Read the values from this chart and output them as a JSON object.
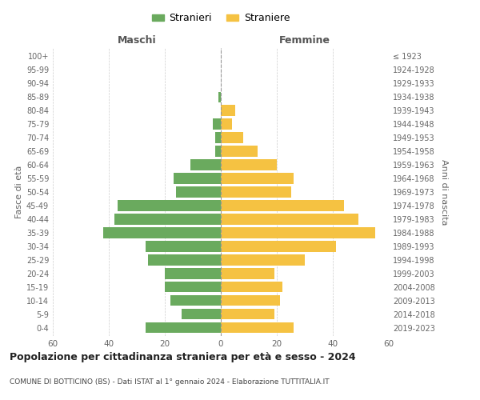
{
  "age_groups": [
    "0-4",
    "5-9",
    "10-14",
    "15-19",
    "20-24",
    "25-29",
    "30-34",
    "35-39",
    "40-44",
    "45-49",
    "50-54",
    "55-59",
    "60-64",
    "65-69",
    "70-74",
    "75-79",
    "80-84",
    "85-89",
    "90-94",
    "95-99",
    "100+"
  ],
  "birth_years": [
    "2019-2023",
    "2014-2018",
    "2009-2013",
    "2004-2008",
    "1999-2003",
    "1994-1998",
    "1989-1993",
    "1984-1988",
    "1979-1983",
    "1974-1978",
    "1969-1973",
    "1964-1968",
    "1959-1963",
    "1954-1958",
    "1949-1953",
    "1944-1948",
    "1939-1943",
    "1934-1938",
    "1929-1933",
    "1924-1928",
    "≤ 1923"
  ],
  "males": [
    27,
    14,
    18,
    20,
    20,
    26,
    27,
    42,
    38,
    37,
    16,
    17,
    11,
    2,
    2,
    3,
    0,
    1,
    0,
    0,
    0
  ],
  "females": [
    26,
    19,
    21,
    22,
    19,
    30,
    41,
    55,
    49,
    44,
    25,
    26,
    20,
    13,
    8,
    4,
    5,
    0,
    0,
    0,
    0
  ],
  "male_color": "#6aaa5e",
  "female_color": "#f5c242",
  "title": "Popolazione per cittadinanza straniera per età e sesso - 2024",
  "subtitle": "COMUNE DI BOTTICINO (BS) - Dati ISTAT al 1° gennaio 2024 - Elaborazione TUTTITALIA.IT",
  "xlabel_left": "Maschi",
  "xlabel_right": "Femmine",
  "ylabel_left": "Fasce di età",
  "ylabel_right": "Anni di nascita",
  "legend_male": "Stranieri",
  "legend_female": "Straniere",
  "xlim": 60,
  "background_color": "#ffffff",
  "grid_color": "#cccccc"
}
